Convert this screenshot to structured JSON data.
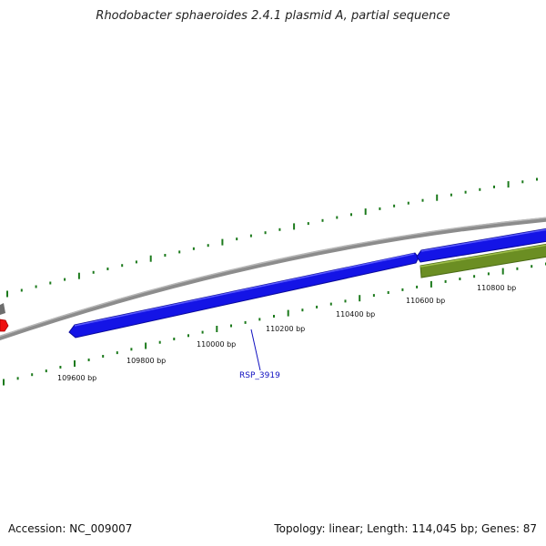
{
  "title": "Rhodobacter sphaeroides 2.4.1 plasmid A, partial sequence",
  "footer": {
    "accession": "Accession: NC_009007",
    "summary": "Topology: linear; Length: 114,045 bp; Genes: 87"
  },
  "scale_ticks": [
    "109600 bp",
    "109800 bp",
    "110000 bp",
    "110200 bp",
    "110400 bp",
    "110600 bp",
    "110800 bp"
  ],
  "gene_label": "RSP_3919",
  "colors": {
    "backbone": "#8c8c8c",
    "gene_blue": "#1414e6",
    "gene_olive": "#6b8e23",
    "gene_red": "#ee1111",
    "gene_gray": "#6e6e6e",
    "tick_green": "#1c7a1c",
    "label_blue": "#1010c0"
  }
}
